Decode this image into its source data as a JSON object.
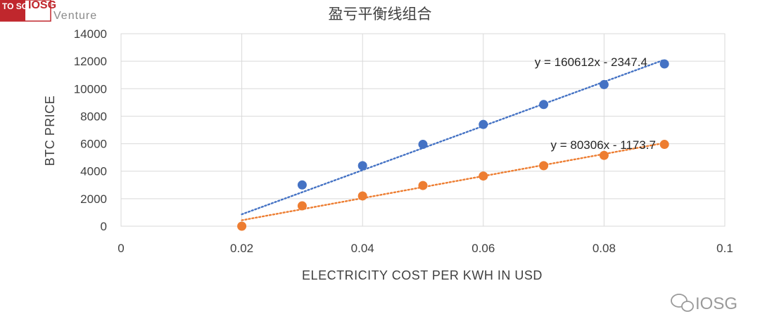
{
  "logo": {
    "top_left_mark": "TO SG",
    "top_left_name": "IOSG",
    "top_left_sub": "Venture",
    "watermark": "IOSG"
  },
  "colors": {
    "series1": "#4472c4",
    "series2": "#ed7d31",
    "grid": "#d9d9d9",
    "logo_red": "#c0272d"
  },
  "chart_data": {
    "type": "scatter",
    "title": "盈亏平衡线组合",
    "xlabel": "ELECTRICITY COST PER KWH IN USD",
    "ylabel": "BTC PRICE",
    "xlim": [
      0,
      0.1
    ],
    "ylim": [
      0,
      14000
    ],
    "xticks": [
      "0",
      "0.02",
      "0.04",
      "0.06",
      "0.08",
      "0.1"
    ],
    "yticks": [
      "0",
      "2000",
      "4000",
      "6000",
      "8000",
      "10000",
      "12000",
      "14000"
    ],
    "grid": true,
    "series": [
      {
        "x": [
          0.03,
          0.04,
          0.05,
          0.06,
          0.07,
          0.08,
          0.09
        ],
        "y": [
          3000,
          4400,
          5950,
          7400,
          8850,
          10300,
          11800
        ],
        "trendline": {
          "slope": 160612,
          "intercept": -2347.4,
          "x_range": [
            0.02,
            0.09
          ],
          "label": "y = 160612x - 2347.4"
        }
      },
      {
        "x": [
          0.02,
          0.03,
          0.04,
          0.05,
          0.06,
          0.07,
          0.08,
          0.09
        ],
        "y": [
          0,
          1480,
          2200,
          2960,
          3650,
          4400,
          5150,
          5950
        ],
        "trendline": {
          "slope": 80306,
          "intercept": -1173.7,
          "x_range": [
            0.02,
            0.09
          ],
          "label": "y = 80306x - 1173.7"
        }
      }
    ]
  }
}
